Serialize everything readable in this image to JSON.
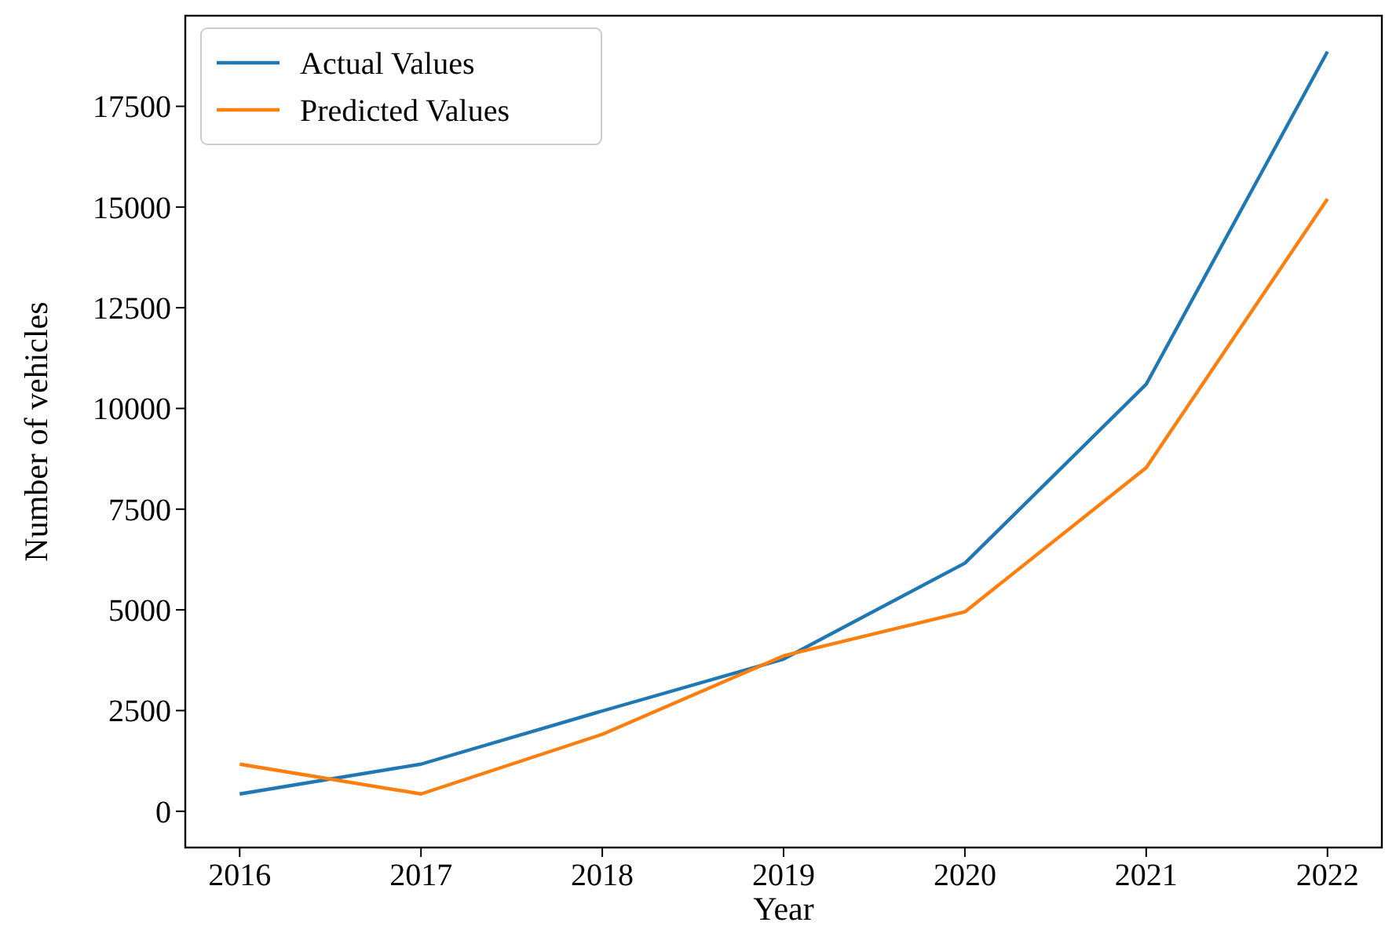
{
  "chart_data": {
    "type": "line",
    "xlabel": "Year",
    "ylabel": "Number of vehicles",
    "x": [
      2016,
      2017,
      2018,
      2019,
      2020,
      2021,
      2022
    ],
    "series": [
      {
        "name": "Actual Values",
        "color": "#1f77b4",
        "values": [
          430,
          1170,
          2490,
          3780,
          6160,
          10600,
          18860
        ]
      },
      {
        "name": "Predicted Values",
        "color": "#ff7f0e",
        "values": [
          1170,
          430,
          1910,
          3860,
          4950,
          8530,
          15200
        ]
      }
    ],
    "xlim": [
      2015.7,
      2022.3
    ],
    "xticks": [
      2016,
      2017,
      2018,
      2019,
      2020,
      2021,
      2022
    ],
    "ylim": [
      -900,
      19750
    ],
    "yticks": [
      0,
      2500,
      5000,
      7500,
      10000,
      12500,
      15000,
      17500
    ],
    "grid": false,
    "legend": "top left",
    "marker": "none",
    "line_style": "solid"
  }
}
